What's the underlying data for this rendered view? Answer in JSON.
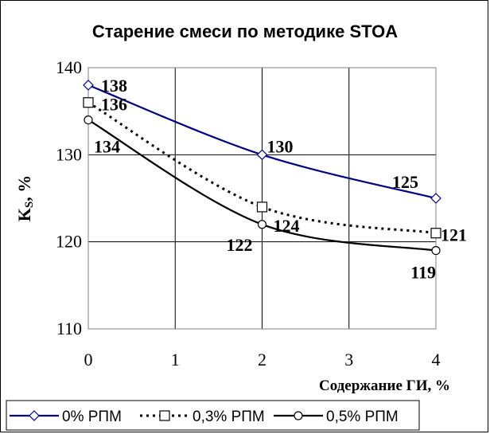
{
  "chart_data": {
    "type": "line",
    "title": "Старение смеси по методике STOA",
    "xlabel": "Содержание ГИ, %",
    "ylabel_main": "K",
    "ylabel_sub": "S",
    "ylabel_unit": ", %",
    "xlim": [
      0,
      4
    ],
    "ylim": [
      110,
      140
    ],
    "x_ticks": [
      0,
      1,
      2,
      3,
      4
    ],
    "y_ticks": [
      110,
      120,
      130,
      140
    ],
    "grid": true,
    "legend_position": "bottom",
    "series": [
      {
        "name": "0% РПМ",
        "marker": "diamond",
        "line_style": "solid",
        "color": "#000080",
        "x": [
          0,
          2,
          4
        ],
        "values": [
          138,
          130,
          125
        ],
        "labels": [
          "138",
          "130",
          "125"
        ]
      },
      {
        "name": "0,3% РПМ",
        "marker": "square",
        "line_style": "dotted",
        "color": "#000000",
        "x": [
          0,
          2,
          4
        ],
        "values": [
          136,
          124,
          121
        ],
        "labels": [
          "136",
          "124",
          "121"
        ]
      },
      {
        "name": "0,5% РПМ",
        "marker": "circle",
        "line_style": "solid",
        "color": "#000000",
        "x": [
          0,
          2,
          4
        ],
        "values": [
          134,
          122,
          119
        ],
        "labels": [
          "134",
          "122",
          "119"
        ]
      }
    ]
  }
}
